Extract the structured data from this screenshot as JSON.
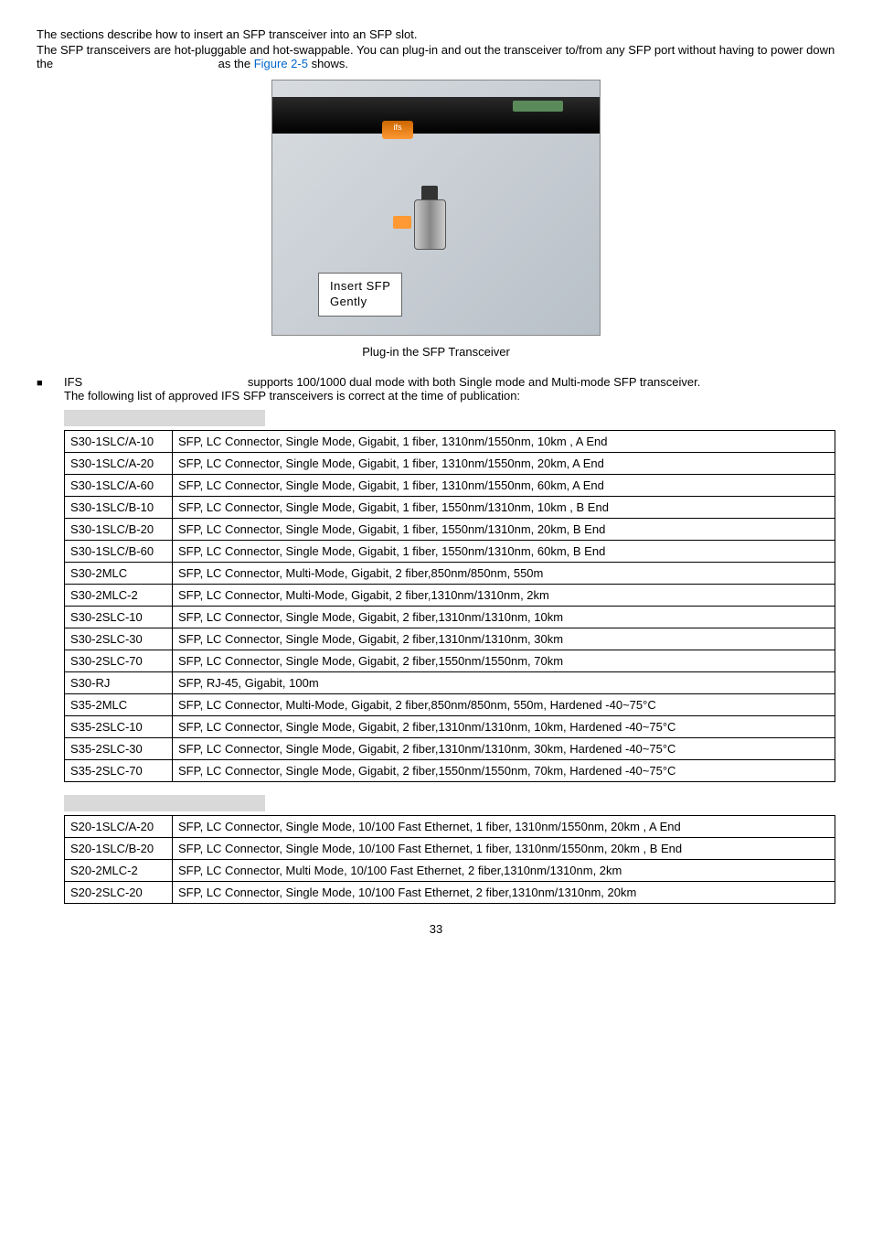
{
  "intro": {
    "line1": "The sections describe how to insert an SFP transceiver into an SFP slot.",
    "line2_a": "The SFP transceivers are hot-pluggable and hot-swappable. You can plug-in and out the transceiver to/from any SFP port without having to power down the",
    "line2_gap": "                                                  as the ",
    "figure_ref": "Figure 2-5",
    "line2_b": " shows."
  },
  "image": {
    "speech1": "Insert SFP",
    "speech2": "Gently",
    "ifs": "ifs"
  },
  "caption": "Plug-in the SFP Transceiver",
  "bullet": "■",
  "ifs_text": {
    "label": "IFS",
    "line1_rest": "supports 100/1000 dual mode with both Single mode and Multi-mode SFP transceiver.",
    "line2": "The following list of approved IFS SFP transceivers is correct at the time of publication:"
  },
  "table1": {
    "rows": [
      [
        "S30-1SLC/A-10",
        "SFP, LC Connector, Single Mode, Gigabit,   1 fiber, 1310nm/1550nm, 10km , A End"
      ],
      [
        "S30-1SLC/A-20",
        "SFP, LC Connector, Single Mode, Gigabit,   1 fiber, 1310nm/1550nm, 20km, A End"
      ],
      [
        "S30-1SLC/A-60",
        "SFP, LC Connector, Single Mode, Gigabit,   1 fiber, 1310nm/1550nm, 60km, A End"
      ],
      [
        "S30-1SLC/B-10",
        "SFP, LC Connector, Single Mode, Gigabit,   1 fiber, 1550nm/1310nm, 10km , B End"
      ],
      [
        "S30-1SLC/B-20",
        "SFP, LC Connector, Single Mode, Gigabit,   1 fiber, 1550nm/1310nm, 20km, B End"
      ],
      [
        "S30-1SLC/B-60",
        "SFP, LC Connector, Single Mode, Gigabit,   1 fiber, 1550nm/1310nm, 60km, B End"
      ],
      [
        "S30-2MLC",
        "SFP, LC Connector, Multi-Mode, Gigabit,   2 fiber,850nm/850nm, 550m"
      ],
      [
        "S30-2MLC-2",
        "SFP, LC Connector, Multi-Mode, Gigabit,   2 fiber,1310nm/1310nm, 2km"
      ],
      [
        "S30-2SLC-10",
        "SFP, LC Connector, Single Mode, Gigabit,   2 fiber,1310nm/1310nm, 10km"
      ],
      [
        "S30-2SLC-30",
        "SFP, LC Connector, Single Mode, Gigabit,   2 fiber,1310nm/1310nm, 30km"
      ],
      [
        "S30-2SLC-70",
        "SFP, LC Connector, Single Mode, Gigabit,   2 fiber,1550nm/1550nm, 70km"
      ],
      [
        "S30-RJ",
        "SFP, RJ-45, Gigabit, 100m"
      ],
      [
        "S35-2MLC",
        "SFP, LC Connector, Multi-Mode, Gigabit,   2 fiber,850nm/850nm, 550m, Hardened -40~75°C"
      ],
      [
        "S35-2SLC-10",
        "SFP, LC Connector, Single Mode, Gigabit,   2 fiber,1310nm/1310nm, 10km, Hardened -40~75°C"
      ],
      [
        "S35-2SLC-30",
        "SFP, LC Connector, Single Mode, Gigabit,   2 fiber,1310nm/1310nm, 30km, Hardened -40~75°C"
      ],
      [
        "S35-2SLC-70",
        "SFP, LC Connector, Single Mode, Gigabit,   2 fiber,1550nm/1550nm, 70km, Hardened -40~75°C"
      ]
    ]
  },
  "table2": {
    "rows": [
      [
        "S20-1SLC/A-20",
        "SFP, LC Connector, Single Mode, 10/100 Fast Ethernet,   1 fiber, 1310nm/1550nm, 20km , A End"
      ],
      [
        "S20-1SLC/B-20",
        "SFP, LC Connector, Single Mode, 10/100 Fast Ethernet,   1 fiber, 1310nm/1550nm, 20km , B End"
      ],
      [
        "S20-2MLC-2",
        "SFP, LC Connector, Multi Mode, 10/100 Fast Ethernet,   2 fiber,1310nm/1310nm, 2km"
      ],
      [
        "S20-2SLC-20",
        "SFP, LC Connector, Single Mode, 10/100 Fast Ethernet,   2 fiber,1310nm/1310nm, 20km"
      ]
    ]
  },
  "page_number": "33"
}
